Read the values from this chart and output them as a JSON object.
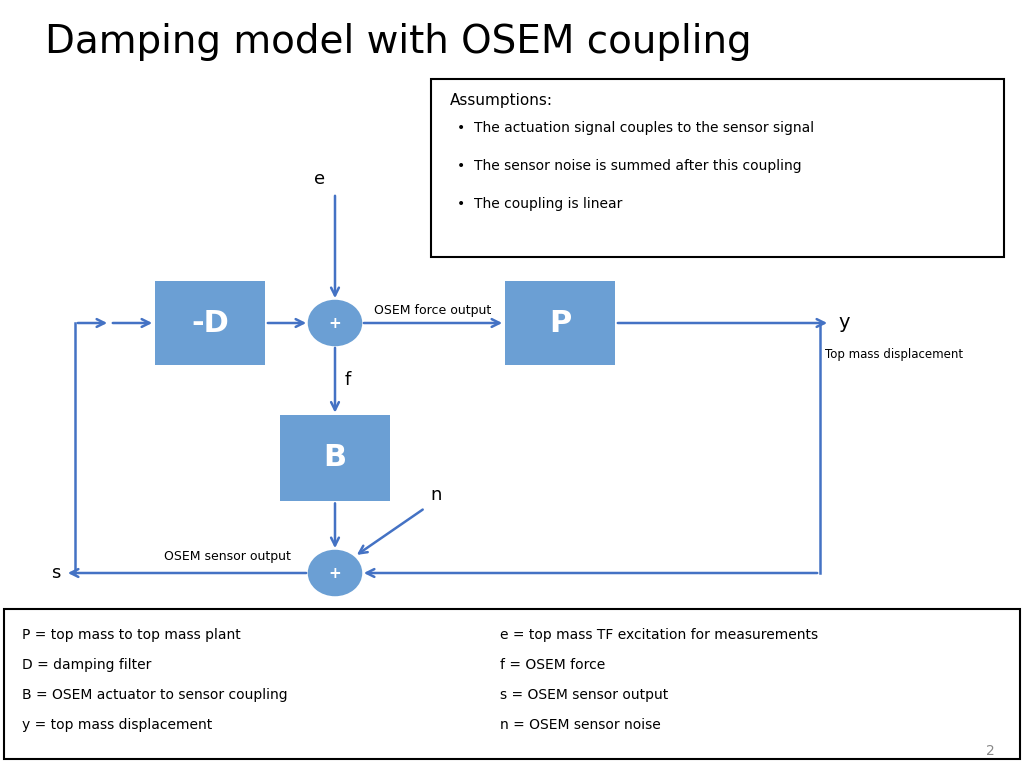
{
  "title": "Damping model with OSEM coupling",
  "title_fontsize": 28,
  "bg_color": "#ffffff",
  "box_color_light": "#6B9FD4",
  "sum_color": "#6B9FD4",
  "arrow_color": "#4472C4",
  "text_color_white": "#ffffff",
  "text_color_black": "#000000",
  "assumptions_title": "Assumptions:",
  "assumptions_bullets": [
    "The actuation signal couples to the sensor signal",
    "The sensor noise is summed after this coupling",
    "The coupling is linear"
  ],
  "legend_left": [
    "P = top mass to top mass plant",
    "D = damping filter",
    "B = OSEM actuator to sensor coupling",
    "y = top mass displacement"
  ],
  "legend_right": [
    "e = top mass TF excitation for measurements",
    "f = OSEM force",
    "s = OSEM sensor output",
    "n = OSEM sensor noise"
  ],
  "slide_number": "2"
}
